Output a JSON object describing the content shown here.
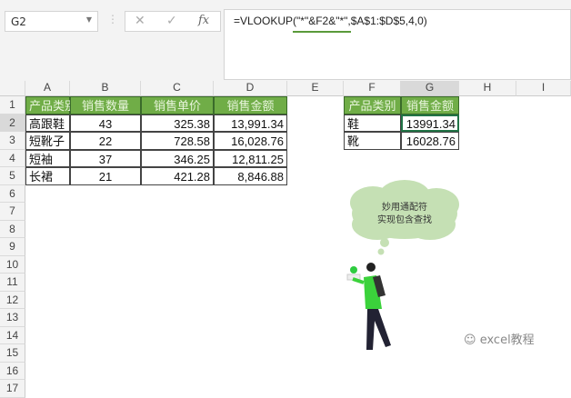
{
  "namebox": {
    "value": "G2"
  },
  "formula_bar": {
    "cancel": "✕",
    "enter": "✓",
    "fx": "fx",
    "formula": "=VLOOKUP(\"*\"&F2&\"*\",$A$1:$D$5,4,0)"
  },
  "columns": [
    "A",
    "B",
    "C",
    "D",
    "E",
    "F",
    "G",
    "H",
    "I"
  ],
  "rows": [
    "1",
    "2",
    "3",
    "4",
    "5",
    "6",
    "7",
    "8",
    "9",
    "10",
    "11",
    "12",
    "13",
    "14",
    "15",
    "16",
    "17"
  ],
  "table1": {
    "headers": [
      "产品类别",
      "销售数量",
      "销售单价",
      "销售金额"
    ],
    "rows": [
      [
        "高跟鞋",
        "43",
        "325.38",
        "13,991.34"
      ],
      [
        "短靴子",
        "22",
        "728.58",
        "16,028.76"
      ],
      [
        "短袖",
        "37",
        "346.25",
        "12,811.25"
      ],
      [
        "长裙",
        "21",
        "421.28",
        "8,846.88"
      ]
    ]
  },
  "table2": {
    "headers": [
      "产品类别",
      "销售金额"
    ],
    "rows": [
      [
        "鞋",
        "13991.34"
      ],
      [
        "靴",
        "16028.76"
      ]
    ]
  },
  "callout": {
    "line1": "妙用通配符",
    "line2": "实现包含查找"
  },
  "watermark": "excel教程",
  "colors": {
    "header_green": "#70ad47",
    "selection": "#217346",
    "cloud": "#c5e0b4"
  }
}
